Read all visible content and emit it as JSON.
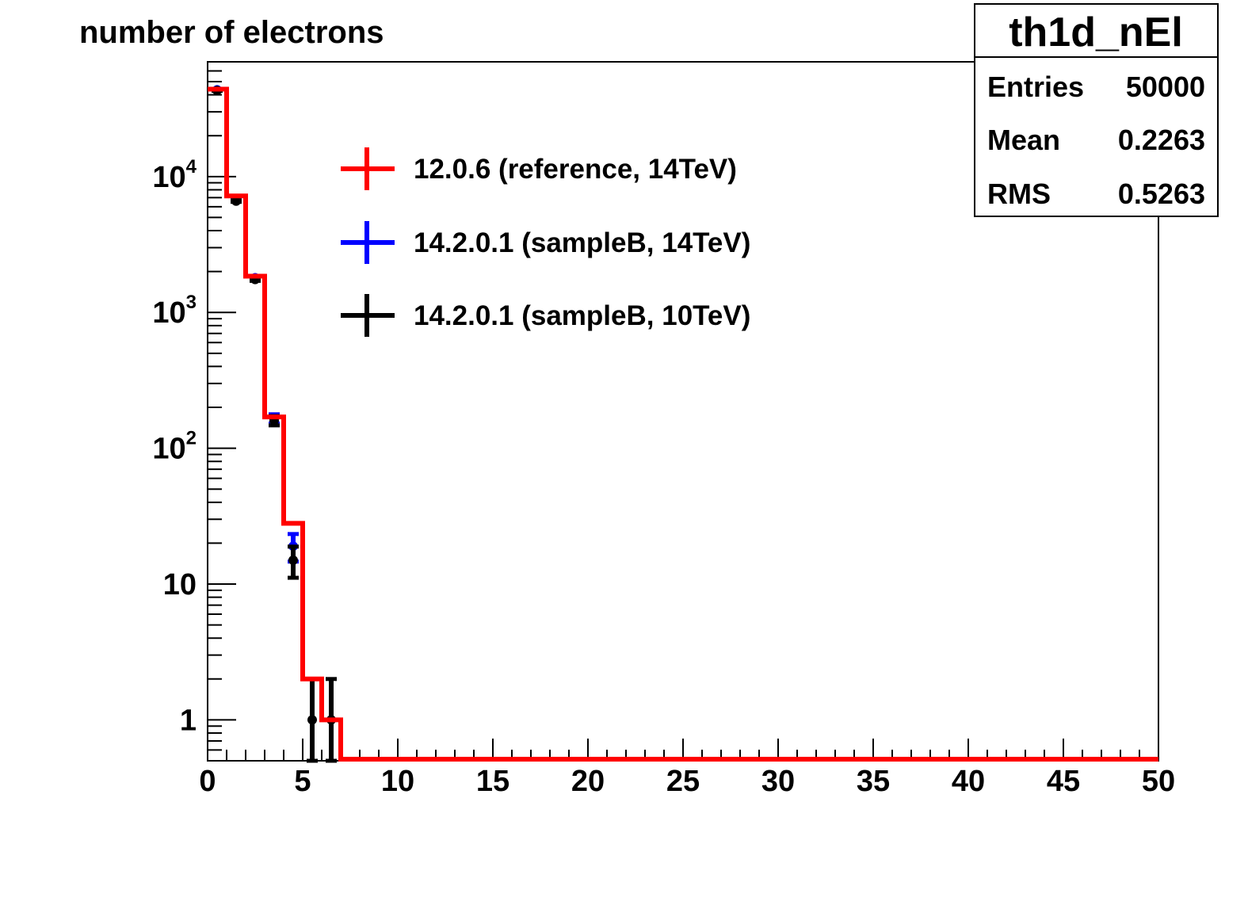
{
  "chart_data": {
    "type": "histogram",
    "title": "number of electrons",
    "xlim": [
      0,
      50
    ],
    "ylim": [
      0.5,
      70000
    ],
    "yscale": "log",
    "bin_width": 1,
    "x_ticks": [
      0,
      5,
      10,
      15,
      20,
      25,
      30,
      35,
      40,
      45,
      50
    ],
    "y_ticks": [
      {
        "value": 1,
        "base": "1",
        "exp": ""
      },
      {
        "value": 10,
        "base": "10",
        "exp": ""
      },
      {
        "value": 100,
        "base": "10",
        "exp": "2"
      },
      {
        "value": 1000,
        "base": "10",
        "exp": "3"
      },
      {
        "value": 10000,
        "base": "10",
        "exp": "4"
      }
    ],
    "series": [
      {
        "name": "12.0.6 (reference, 14TeV)",
        "color": "#ff0000",
        "style": "step",
        "values": [
          44000,
          7200,
          1850,
          170,
          28,
          2,
          1,
          0
        ]
      },
      {
        "name": "14.2.0.1 (sampleB, 14TeV)",
        "color": "#0000ff",
        "style": "errorbar",
        "values": [
          43500,
          6900,
          1800,
          165,
          19,
          0,
          0
        ]
      },
      {
        "name": "14.2.0.1 (sampleB, 10TeV)",
        "color": "#000000",
        "style": "errorbar",
        "values": [
          43000,
          6600,
          1750,
          160,
          15,
          1,
          1
        ]
      }
    ],
    "legend_position": "top-left-inside"
  },
  "stats_box": {
    "title": "th1d_nEl",
    "rows": [
      {
        "label": "Entries",
        "value": "50000"
      },
      {
        "label": "Mean",
        "value": "0.2263"
      },
      {
        "label": "RMS",
        "value": "0.5263"
      }
    ]
  }
}
